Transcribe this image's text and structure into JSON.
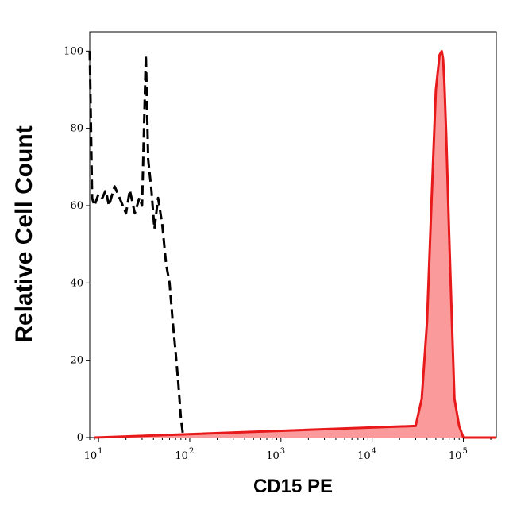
{
  "chart_data": {
    "type": "area",
    "xlabel": "CD15 PE",
    "ylabel": "Relative Cell Count",
    "x_scale": "log",
    "xlim": [
      8,
      230000
    ],
    "ylim": [
      0,
      105
    ],
    "y_ticks": [
      0,
      20,
      40,
      60,
      80,
      100
    ],
    "y_tick_labels": [
      "0",
      "20",
      "40",
      "60",
      "80",
      "100"
    ],
    "x_ticks": [
      {
        "value": 10,
        "base": "10",
        "exp": "1"
      },
      {
        "value": 100,
        "base": "10",
        "exp": "2"
      },
      {
        "value": 1000,
        "base": "10",
        "exp": "3"
      },
      {
        "value": 10000,
        "base": "10",
        "exp": "4"
      },
      {
        "value": 100000,
        "base": "10",
        "exp": "5"
      }
    ],
    "grid": false,
    "series": [
      {
        "style": "dashed",
        "color": "#000000",
        "x": [
          8,
          8.5,
          9,
          10,
          11,
          12,
          13,
          15,
          17,
          20,
          22,
          25,
          28,
          30,
          33,
          35,
          38,
          41,
          45,
          50,
          55,
          60,
          65,
          70,
          75,
          80,
          85
        ],
        "y": [
          100,
          62,
          60,
          63,
          62,
          64,
          60,
          65,
          62,
          58,
          64,
          58,
          62,
          60,
          99,
          72,
          64,
          54,
          62,
          55,
          45,
          40,
          30,
          22,
          14,
          5,
          0
        ]
      },
      {
        "style": "filled",
        "color": "#e8191a",
        "fill": "#fa9a9a",
        "x": [
          9,
          30000,
          35000,
          40000,
          45000,
          50000,
          55000,
          58000,
          60000,
          62000,
          65000,
          70000,
          75000,
          80000,
          90000,
          100000,
          110000,
          230000
        ],
        "y": [
          0,
          3,
          10,
          30,
          62,
          90,
          99,
          100,
          98,
          92,
          78,
          52,
          30,
          10,
          3,
          0,
          0,
          0
        ]
      }
    ]
  }
}
